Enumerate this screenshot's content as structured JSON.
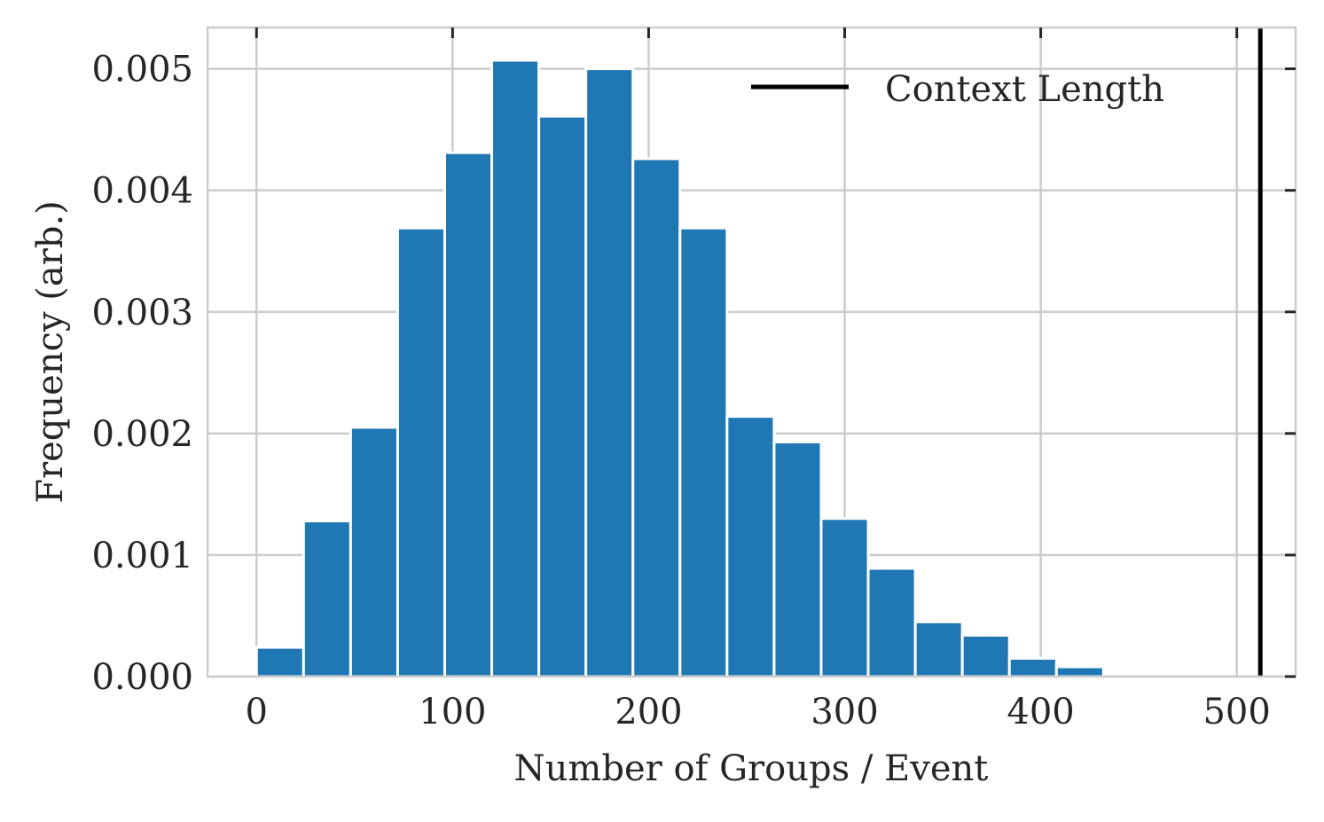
{
  "chart_data": {
    "type": "bar",
    "subtype": "histogram",
    "xlabel": "Number of Groups / Event",
    "ylabel": "Frequency (arb.)",
    "xlim": [
      -25,
      530
    ],
    "ylim": [
      0,
      0.00534
    ],
    "xticks": [
      0,
      100,
      200,
      300,
      400,
      500
    ],
    "xtick_labels": [
      "0",
      "100",
      "200",
      "300",
      "400",
      "500"
    ],
    "yticks": [
      0,
      0.001,
      0.002,
      0.003,
      0.004,
      0.005
    ],
    "ytick_labels": [
      "0.000",
      "0.001",
      "0.002",
      "0.003",
      "0.004",
      "0.005"
    ],
    "grid": true,
    "bar_color": "#1f77b4",
    "bin_width": 24,
    "bin_edges": [
      0,
      24,
      48,
      72,
      96,
      120,
      144,
      168,
      192,
      216,
      240,
      264,
      288,
      312,
      336,
      360,
      384,
      408,
      432
    ],
    "values": [
      0.00024,
      0.00128,
      0.00205,
      0.00369,
      0.00431,
      0.00507,
      0.00461,
      0.005,
      0.00426,
      0.00369,
      0.00214,
      0.00193,
      0.0013,
      0.00089,
      0.00045,
      0.00034,
      0.00015,
      8e-05
    ],
    "reference_line": {
      "x": 512,
      "color": "#000000"
    },
    "legend": {
      "entries": [
        "Context Length"
      ],
      "placement": "top-right"
    }
  }
}
